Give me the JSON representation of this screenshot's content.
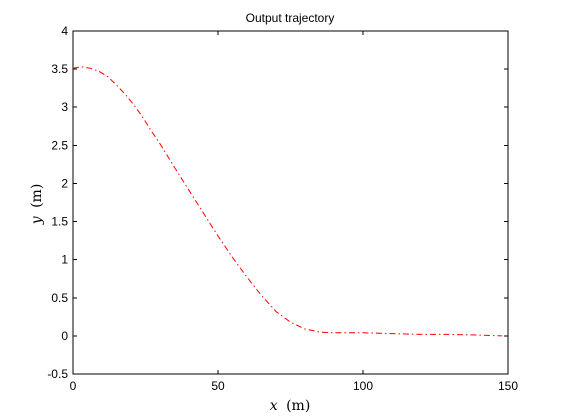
{
  "chart_data": {
    "type": "line",
    "title": "Output trajectory",
    "xlabel_var": "x",
    "xlabel_unit": "(m)",
    "ylabel_var": "y",
    "ylabel_unit": "(m)",
    "xlim": [
      0,
      150
    ],
    "ylim": [
      -0.5,
      4
    ],
    "x_ticks": [
      0,
      50,
      100,
      150
    ],
    "y_ticks": [
      -0.5,
      0,
      0.5,
      1,
      1.5,
      2,
      2.5,
      3,
      3.5,
      4
    ],
    "x_tick_labels": [
      "0",
      "50",
      "100",
      "150"
    ],
    "y_tick_labels": [
      "-0.5",
      "0",
      "0.5",
      "1",
      "1.5",
      "2",
      "2.5",
      "3",
      "3.5",
      "4"
    ],
    "grid": false,
    "series": [
      {
        "line_style": "dash-dot",
        "color": "#ff0000",
        "x": [
          0,
          3,
          6,
          9,
          12,
          15,
          18,
          21,
          24,
          27,
          30,
          35,
          40,
          45,
          50,
          55,
          60,
          65,
          70,
          75,
          80,
          85,
          90,
          95,
          100,
          110,
          120,
          130,
          140,
          148
        ],
        "y": [
          3.51,
          3.53,
          3.51,
          3.47,
          3.4,
          3.29,
          3.17,
          3.03,
          2.87,
          2.69,
          2.52,
          2.21,
          1.91,
          1.61,
          1.31,
          1.03,
          0.77,
          0.53,
          0.32,
          0.18,
          0.09,
          0.05,
          0.04,
          0.04,
          0.04,
          0.03,
          0.02,
          0.02,
          0.01,
          0.0
        ]
      }
    ]
  }
}
